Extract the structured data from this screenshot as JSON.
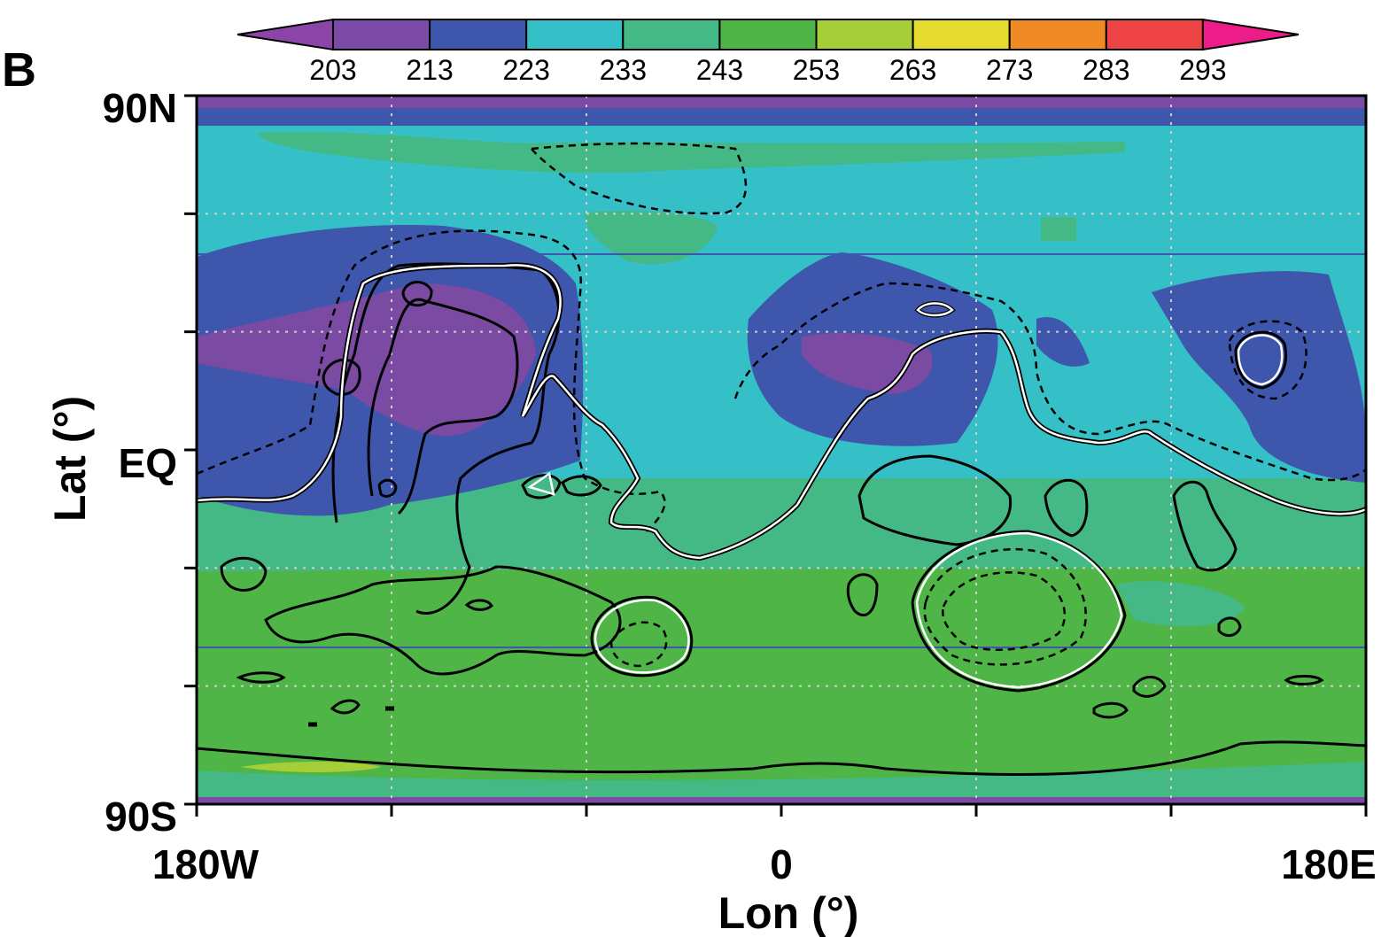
{
  "chart_data": {
    "type": "heatmap",
    "panel_label": "B",
    "xlabel": "Lon (°)",
    "ylabel": "Lat (°)",
    "x_ticks": [
      "180W",
      "0",
      "180E"
    ],
    "y_ticks": [
      "90N",
      "EQ",
      "90S"
    ],
    "x_range": [
      -180,
      180
    ],
    "y_range": [
      -90,
      90
    ],
    "grid": true,
    "colorbar": {
      "orientation": "horizontal",
      "position": "top",
      "extend": "both",
      "tick_labels": [
        "203",
        "213",
        "223",
        "233",
        "243",
        "253",
        "263",
        "273",
        "283",
        "293"
      ],
      "colors": [
        "#8b45a6",
        "#7a4aa6",
        "#3f56ad",
        "#35bfc6",
        "#44b986",
        "#4fb546",
        "#a6ce39",
        "#e6db2f",
        "#f08a24",
        "#ee4344",
        "#ec1c8b"
      ]
    },
    "field_colors": {
      "polar": "#7b4aa2",
      "band_213_223": "#3f56ad",
      "band_223_233": "#35bfc6",
      "band_233_243": "#44b986",
      "band_243_253": "#4fb546",
      "band_253_263": "#a6ce39",
      "minimum": "#7b4aa2"
    }
  }
}
